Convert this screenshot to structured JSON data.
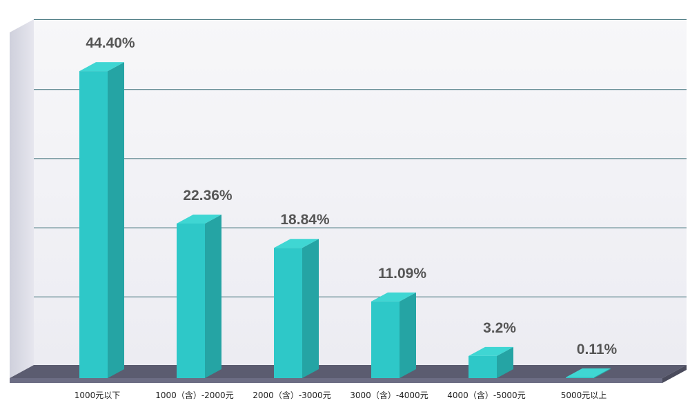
{
  "chart_data": {
    "type": "bar",
    "categories": [
      "1000元以下",
      "1000（含）-2000元",
      "2000（含）-3000元",
      "3000（含）-4000元",
      "4000（含）-5000元",
      "5000元以上"
    ],
    "values": [
      44.4,
      22.36,
      18.84,
      11.09,
      3.2,
      0.11
    ],
    "data_labels": [
      "44.40%",
      "22.36%",
      "18.84%",
      "11.09%",
      "3.2%",
      "0.11%"
    ],
    "ylim": [
      0,
      50
    ],
    "grid": true,
    "three_d": true,
    "colors": {
      "bar_front": "#2ec8c8",
      "bar_side": "#25a4a4",
      "bar_top": "#3fd6d3",
      "plot_back": "#f4f4f7",
      "grid": "#3d6f78",
      "floor": "#5a5b6e",
      "wall": "#c9cad6"
    }
  }
}
